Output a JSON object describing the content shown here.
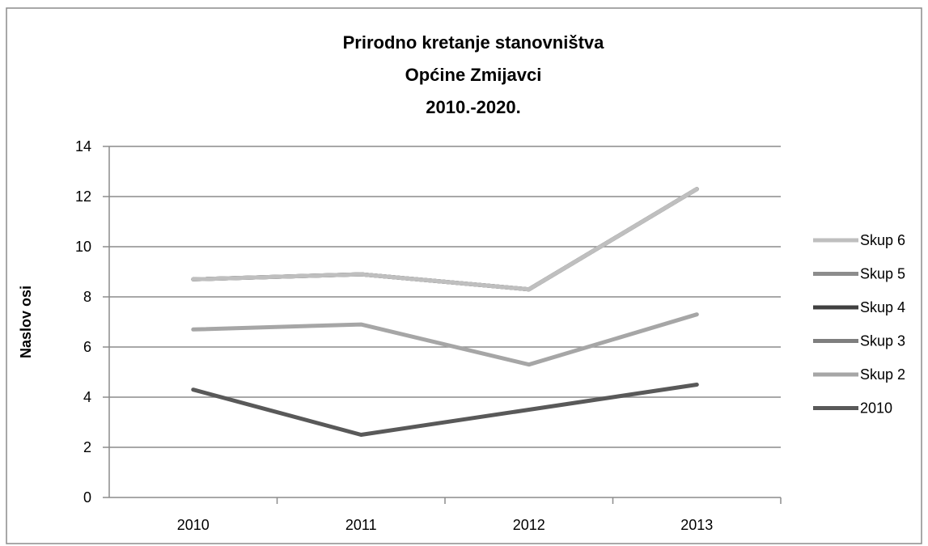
{
  "chart_data": {
    "type": "line",
    "title_lines": [
      "Prirodno kretanje stanovništva",
      "Općine Zmijavci",
      "2010.-2020."
    ],
    "ylabel": "Naslov osi",
    "xlabel": "",
    "categories": [
      "2010",
      "2011",
      "2012",
      "2013"
    ],
    "ylim": [
      0,
      14
    ],
    "yticks": [
      0,
      2,
      4,
      6,
      8,
      10,
      12,
      14
    ],
    "grid": true,
    "legend_position": "right",
    "series": [
      {
        "name": "2010",
        "values": [
          4.3,
          2.5,
          3.5,
          4.5
        ],
        "color": "#595959"
      },
      {
        "name": "Skup 2",
        "values": [
          6.7,
          6.9,
          5.3,
          7.3
        ],
        "color": "#a6a6a6"
      },
      {
        "name": "Skup 3",
        "values": [
          8.7,
          8.9,
          8.3,
          12.3
        ],
        "color": "#7f7f7f"
      },
      {
        "name": "Skup 4",
        "values": [
          8.7,
          8.9,
          8.3,
          12.3
        ],
        "color": "#404040"
      },
      {
        "name": "Skup 5",
        "values": [
          8.7,
          8.9,
          8.3,
          12.3
        ],
        "color": "#8c8c8c"
      },
      {
        "name": "Skup 6",
        "values": [
          8.7,
          8.9,
          8.3,
          12.3
        ],
        "color": "#bfbfbf"
      }
    ],
    "legend_order": [
      "Skup 6",
      "Skup 5",
      "Skup 4",
      "Skup 3",
      "Skup 2",
      "2010"
    ]
  }
}
